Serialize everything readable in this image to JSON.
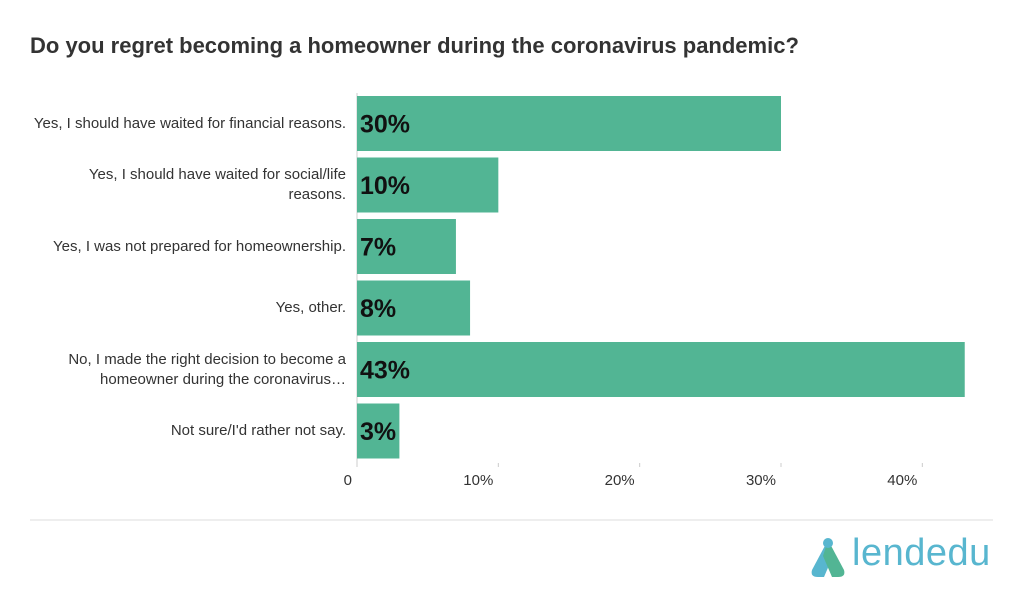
{
  "chart_data": {
    "type": "bar",
    "orientation": "horizontal",
    "title": "Do you regret becoming a homeowner during the coronavirus pandemic?",
    "categories": [
      "Yes, I should have waited for financial reasons.",
      "Yes, I should have waited for social/life reasons.",
      "Yes, I was not prepared for homeownership.",
      "Yes, other.",
      "No, I made the right decision to become a homeowner during the coronavirus…",
      "Not sure/I'd rather not say."
    ],
    "values": [
      30,
      10,
      7,
      8,
      43,
      3
    ],
    "value_labels": [
      "30%",
      "10%",
      "7%",
      "8%",
      "43%",
      "3%"
    ],
    "color": "#52b594",
    "xlim": [
      0,
      45
    ],
    "xticks": [
      0,
      {
        "value": 10,
        "label": "10%"
      },
      {
        "value": 20,
        "label": "20%"
      },
      {
        "value": 30,
        "label": "30%"
      },
      {
        "value": 40,
        "label": "40%"
      }
    ]
  },
  "logo": "lendedu"
}
